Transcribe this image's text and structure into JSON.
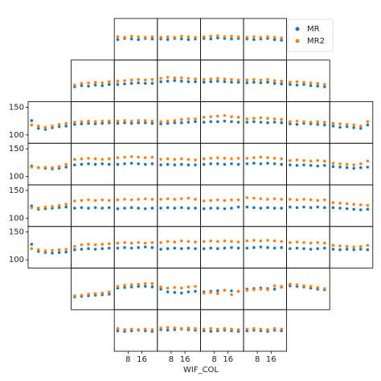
{
  "chart_data": {
    "type": "scatter",
    "xlabel": "WIF_COL",
    "xlim": [
      0,
      25
    ],
    "xticks": [
      8,
      16
    ],
    "ylim": [
      85,
      160
    ],
    "yticks": [
      100,
      150
    ],
    "legend": "upper right",
    "x": [
      2,
      6,
      10,
      14,
      18,
      22
    ],
    "series": [
      {
        "name": "MR",
        "color": "#1f77b4"
      },
      {
        "name": "MR2",
        "color": "#ff7f0e"
      }
    ],
    "rows": [
      [
        [
          [
            122,
            124,
            123,
            122,
            124,
            123
          ],
          [
            127,
            126,
            128,
            127,
            126,
            127
          ]
        ],
        [
          [
            123,
            122,
            124,
            123,
            122,
            123
          ],
          [
            126,
            127,
            126,
            128,
            127,
            126
          ]
        ],
        [
          [
            124,
            123,
            125,
            124,
            123,
            124
          ],
          [
            127,
            128,
            129,
            127,
            128,
            127
          ]
        ],
        [
          [
            123,
            122,
            123,
            124,
            122,
            121
          ],
          [
            126,
            127,
            126,
            127,
            126,
            125
          ]
        ]
      ],
      [
        [
          [
            112,
            114,
            113,
            115,
            114,
            116
          ],
          [
            115,
            118,
            119,
            120,
            119,
            121
          ]
        ],
        [
          [
            116,
            117,
            118,
            119,
            118,
            118
          ],
          [
            122,
            123,
            124,
            125,
            124,
            125
          ]
        ],
        [
          [
            121,
            122,
            123,
            122,
            121,
            121
          ],
          [
            127,
            129,
            128,
            128,
            127,
            126
          ]
        ],
        [
          [
            120,
            121,
            122,
            121,
            120,
            120
          ],
          [
            125,
            126,
            127,
            126,
            125,
            124
          ]
        ],
        [
          [
            119,
            120,
            119,
            120,
            118,
            117
          ],
          [
            124,
            125,
            124,
            125,
            123,
            122
          ]
        ],
        [
          [
            116,
            115,
            116,
            114,
            113,
            112
          ],
          [
            120,
            121,
            120,
            119,
            118,
            116
          ]
        ]
      ],
      [
        [
          [
            126,
            112,
            110,
            113,
            115,
            116
          ],
          [
            118,
            116,
            114,
            116,
            119,
            121
          ]
        ],
        [
          [
            119,
            120,
            121,
            120,
            121,
            122
          ],
          [
            123,
            124,
            125,
            124,
            125,
            125
          ]
        ],
        [
          [
            121,
            122,
            121,
            122,
            122,
            121
          ],
          [
            125,
            126,
            125,
            126,
            126,
            125
          ]
        ],
        [
          [
            120,
            121,
            122,
            122,
            123,
            124
          ],
          [
            124,
            125,
            126,
            128,
            129,
            129
          ]
        ],
        [
          [
            123,
            124,
            124,
            125,
            124,
            123
          ],
          [
            132,
            133,
            134,
            135,
            133,
            132
          ]
        ],
        [
          [
            123,
            124,
            123,
            122,
            123,
            122
          ],
          [
            129,
            130,
            131,
            130,
            129,
            128
          ]
        ],
        [
          [
            120,
            119,
            121,
            120,
            119,
            118
          ],
          [
            124,
            125,
            124,
            123,
            124,
            123
          ]
        ],
        [
          [
            116,
            114,
            115,
            113,
            112,
            118
          ],
          [
            121,
            120,
            119,
            118,
            116,
            124
          ]
        ]
      ],
      [
        [
          [
            119,
            116,
            115,
            114,
            115,
            117
          ],
          [
            117,
            116,
            117,
            116,
            118,
            122
          ]
        ],
        [
          [
            121,
            122,
            123,
            122,
            123,
            122
          ],
          [
            131,
            132,
            133,
            132,
            131,
            132
          ]
        ],
        [
          [
            122,
            123,
            124,
            123,
            122,
            123
          ],
          [
            134,
            135,
            136,
            135,
            134,
            135
          ]
        ],
        [
          [
            121,
            122,
            121,
            122,
            121,
            121
          ],
          [
            131,
            132,
            131,
            132,
            131,
            130
          ]
        ],
        [
          [
            122,
            123,
            123,
            122,
            123,
            122
          ],
          [
            132,
            133,
            134,
            133,
            132,
            133
          ]
        ],
        [
          [
            123,
            124,
            123,
            124,
            123,
            122
          ],
          [
            133,
            134,
            135,
            134,
            133,
            132
          ]
        ],
        [
          [
            121,
            120,
            121,
            120,
            119,
            120
          ],
          [
            129,
            130,
            129,
            128,
            129,
            128
          ]
        ],
        [
          [
            118,
            117,
            116,
            115,
            116,
            117
          ],
          [
            124,
            123,
            122,
            121,
            123,
            128
          ]
        ]
      ],
      [
        [
          [
            122,
            116,
            117,
            118,
            119,
            120
          ],
          [
            119,
            118,
            120,
            121,
            123,
            125
          ]
        ],
        [
          [
            118,
            119,
            118,
            119,
            118,
            119
          ],
          [
            131,
            132,
            133,
            132,
            133,
            132
          ]
        ],
        [
          [
            117,
            118,
            119,
            118,
            117,
            118
          ],
          [
            133,
            134,
            133,
            134,
            135,
            134
          ]
        ],
        [
          [
            118,
            119,
            118,
            119,
            118,
            118
          ],
          [
            134,
            135,
            134,
            135,
            136,
            134
          ]
        ],
        [
          [
            117,
            118,
            118,
            117,
            118,
            120
          ],
          [
            131,
            132,
            133,
            132,
            133,
            133
          ]
        ],
        [
          [
            120,
            119,
            118,
            119,
            118,
            118
          ],
          [
            137,
            136,
            135,
            134,
            135,
            134
          ]
        ],
        [
          [
            120,
            119,
            120,
            119,
            120,
            119
          ],
          [
            134,
            133,
            134,
            133,
            132,
            133
          ]
        ],
        [
          [
            119,
            118,
            117,
            116,
            115,
            116
          ],
          [
            128,
            127,
            126,
            125,
            124,
            123
          ]
        ]
      ],
      [
        [
          [
            128,
            115,
            113,
            112,
            113,
            114
          ],
          [
            120,
            118,
            116,
            117,
            118,
            119
          ]
        ],
        [
          [
            118,
            119,
            120,
            119,
            120,
            121
          ],
          [
            124,
            127,
            128,
            127,
            128,
            129
          ]
        ],
        [
          [
            121,
            122,
            121,
            122,
            123,
            122
          ],
          [
            130,
            131,
            130,
            131,
            130,
            131
          ]
        ],
        [
          [
            119,
            120,
            121,
            120,
            121,
            120
          ],
          [
            131,
            133,
            132,
            134,
            133,
            132
          ]
        ],
        [
          [
            120,
            121,
            120,
            121,
            122,
            121
          ],
          [
            133,
            134,
            133,
            134,
            133,
            132
          ]
        ],
        [
          [
            121,
            122,
            123,
            122,
            121,
            122
          ],
          [
            134,
            135,
            134,
            135,
            134,
            133
          ]
        ],
        [
          [
            120,
            121,
            120,
            119,
            120,
            121
          ],
          [
            131,
            132,
            131,
            130,
            131,
            130
          ]
        ],
        [
          [
            119,
            118,
            119,
            118,
            119,
            118
          ],
          [
            126,
            125,
            124,
            123,
            124,
            126
          ]
        ]
      ],
      [
        [
          [
            108,
            109,
            110,
            111,
            112,
            113
          ],
          [
            110,
            111,
            113,
            114,
            115,
            117
          ]
        ],
        [
          [
            124,
            125,
            126,
            127,
            127,
            126
          ],
          [
            127,
            129,
            130,
            131,
            132,
            132
          ]
        ],
        [
          [
            122,
            117,
            116,
            115,
            117,
            118
          ],
          [
            126,
            124,
            125,
            124,
            126,
            127
          ]
        ],
        [
          [
            117,
            118,
            119,
            120,
            119,
            118
          ],
          [
            115,
            116,
            114,
            120,
            112,
            118
          ]
        ],
        [
          [
            122,
            123,
            124,
            123,
            122,
            126
          ],
          [
            120,
            121,
            122,
            121,
            128,
            127
          ]
        ],
        [
          [
            128,
            127,
            126,
            124,
            122,
            121
          ],
          [
            131,
            130,
            128,
            127,
            125,
            123
          ]
        ]
      ],
      [
        [
          [
            122,
            121,
            122,
            123,
            122,
            121
          ],
          [
            126,
            124,
            125,
            124,
            125,
            124
          ]
        ],
        [
          [
            124,
            123,
            124,
            125,
            124,
            123
          ],
          [
            127,
            128,
            127,
            126,
            127,
            126
          ]
        ],
        [
          [
            122,
            121,
            122,
            123,
            122,
            121
          ],
          [
            125,
            126,
            125,
            126,
            125,
            124
          ]
        ],
        [
          [
            122,
            123,
            122,
            121,
            123,
            122
          ],
          [
            125,
            126,
            125,
            124,
            126,
            125
          ]
        ]
      ]
    ]
  }
}
